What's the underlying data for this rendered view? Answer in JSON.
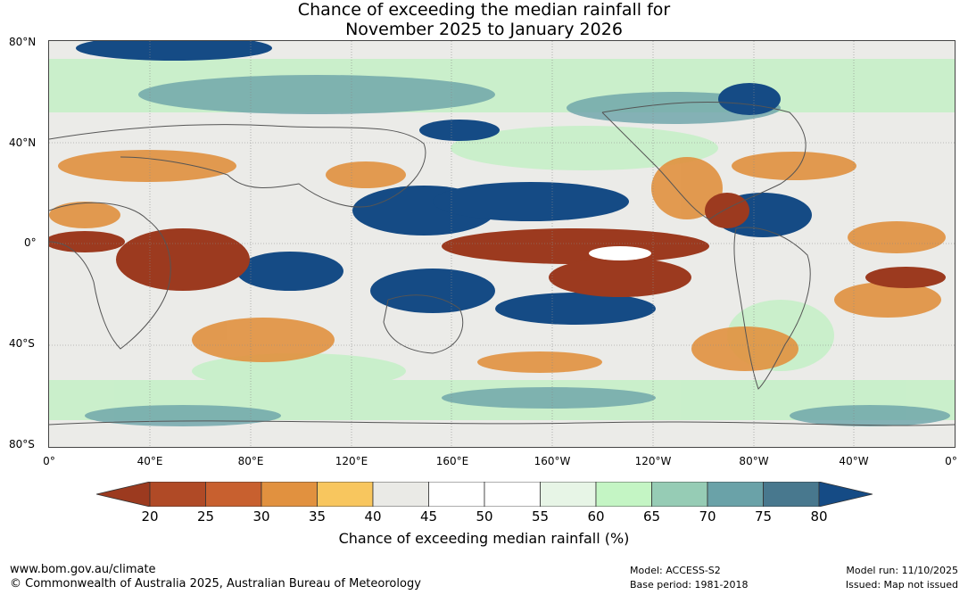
{
  "title": {
    "line1": "Chance of exceeding the median rainfall for",
    "line2": "November 2025 to January 2026"
  },
  "map": {
    "lat_labels": [
      "80°N",
      "40°N",
      "0°",
      "40°S",
      "80°S"
    ],
    "lon_labels": [
      "0°",
      "40°E",
      "80°E",
      "120°E",
      "160°E",
      "160°W",
      "120°W",
      "80°W",
      "40°W",
      "0°"
    ]
  },
  "colorbar": {
    "ticks": [
      "20",
      "25",
      "30",
      "35",
      "40",
      "45",
      "50",
      "55",
      "60",
      "65",
      "70",
      "75",
      "80"
    ],
    "colors": [
      "#9c3a1f",
      "#b04a26",
      "#c8602f",
      "#e1913f",
      "#f8c65e",
      "#eaeae6",
      "#ffffff",
      "#ffffff",
      "#e7f5e6",
      "#c4f5c4",
      "#96ccb5",
      "#6aa2a8",
      "#48788e",
      "#154b85"
    ],
    "label": "Chance of exceeding median rainfall (%)"
  },
  "footer": {
    "url": "www.bom.gov.au/climate",
    "copyright": "© Commonwealth of Australia 2025, Australian Bureau of Meteorology",
    "model": "Model: ACCESS-S2",
    "base_period": "Base period: 1981-2018",
    "model_run": "Model run: 11/10/2025",
    "issued": "Issued: Map not issued"
  }
}
